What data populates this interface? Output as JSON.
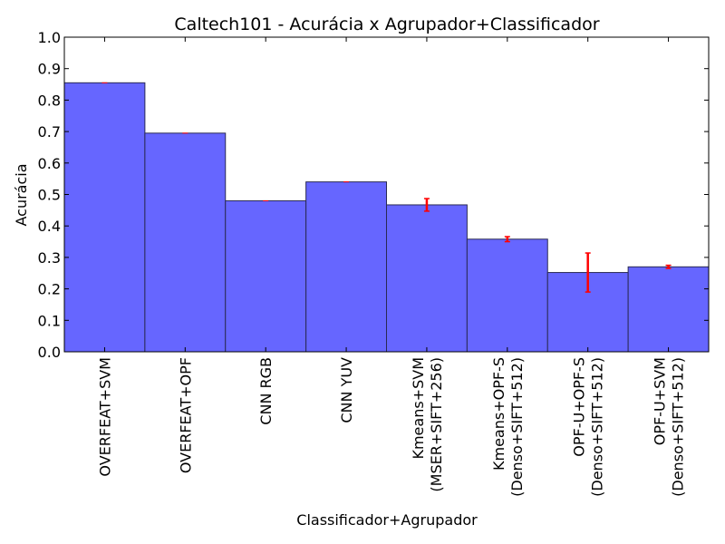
{
  "chart_data": {
    "type": "bar",
    "title": "Caltech101 - Acurácia x Agrupador+Classificador",
    "xlabel": "Classificador+Agrupador",
    "ylabel": "Acurácia",
    "ylim": [
      0,
      1.0
    ],
    "yticks": [
      "0.0",
      "0.1",
      "0.2",
      "0.3",
      "0.4",
      "0.5",
      "0.6",
      "0.7",
      "0.8",
      "0.9",
      "1.0"
    ],
    "categories": [
      [
        "OVERFEAT+SVM"
      ],
      [
        "OVERFEAT+OPF"
      ],
      [
        "CNN RGB"
      ],
      [
        "CNN YUV"
      ],
      [
        "Kmeans+SVM",
        "(MSER+SIFT+256)"
      ],
      [
        "Kmeans+OPF-S",
        "(Denso+SIFT+512)"
      ],
      [
        "OPF-U+OPF-S",
        "(Denso+SIFT+512)"
      ],
      [
        "OPF-U+SVM",
        "(Denso+SIFT+512)"
      ]
    ],
    "values": [
      0.855,
      0.695,
      0.48,
      0.54,
      0.467,
      0.358,
      0.252,
      0.27
    ],
    "errors": [
      0.0,
      0.0,
      0.0,
      0.0,
      0.02,
      0.008,
      0.062,
      0.005
    ],
    "grid": false,
    "legend": "none",
    "colors": {
      "bar": "#6666ff",
      "bar_edge": "#2a2a55",
      "error": "#ff0000",
      "axis": "#000000"
    }
  }
}
